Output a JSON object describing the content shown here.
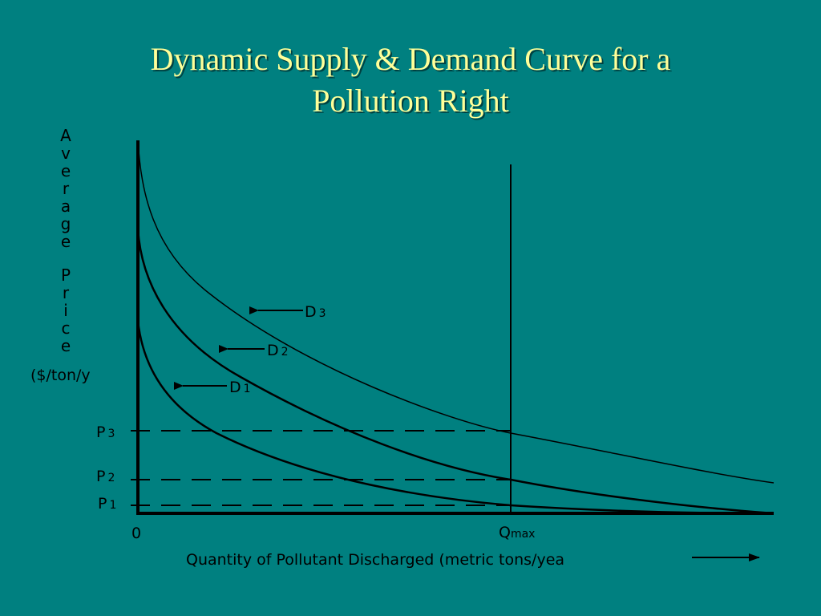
{
  "title": {
    "line1": "Dynamic Supply & Demand Curve for a",
    "line2": "Pollution Right"
  },
  "axes": {
    "y_label_word1": "Average",
    "y_label_word2": "Price",
    "y_label_units": "($/ton/y",
    "x_label": "Quantity of Pollutant Discharged (metric tons/yea",
    "origin_label": "0",
    "qmax_main": "Q",
    "qmax_sub": "max"
  },
  "curves": [
    {
      "name": "D",
      "sub": "1"
    },
    {
      "name": "D",
      "sub": "2"
    },
    {
      "name": "D",
      "sub": "3"
    }
  ],
  "price_levels": [
    {
      "name": "P",
      "sub": "1"
    },
    {
      "name": "P",
      "sub": "2"
    },
    {
      "name": "P",
      "sub": "3"
    }
  ],
  "colors": {
    "background": "#008080",
    "title": "#FFFF99",
    "lines": "#000000"
  }
}
